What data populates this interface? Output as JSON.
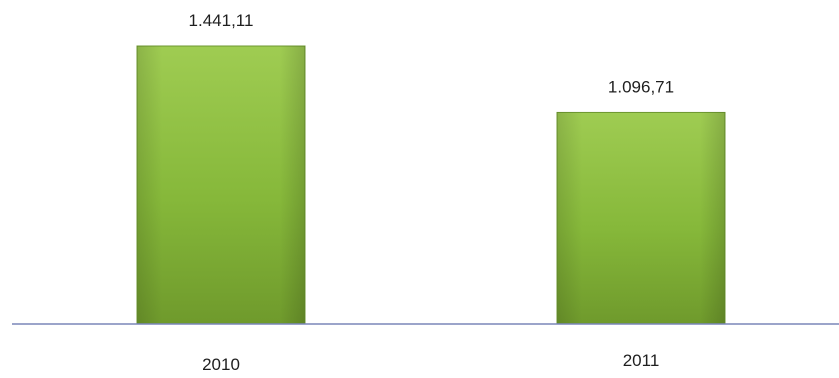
{
  "chart_data": {
    "type": "bar",
    "title": "",
    "xlabel": "",
    "ylabel": "",
    "categories": [
      "2010",
      "2011"
    ],
    "values": [
      1441.11,
      1096.71
    ],
    "data_labels": [
      "1.441,11",
      "1.096,71"
    ],
    "ylim": [
      0,
      1441.11
    ],
    "grid": false,
    "legend": "none",
    "bar_color": "#8bbf3a",
    "axis_color": "#7a86b8"
  }
}
